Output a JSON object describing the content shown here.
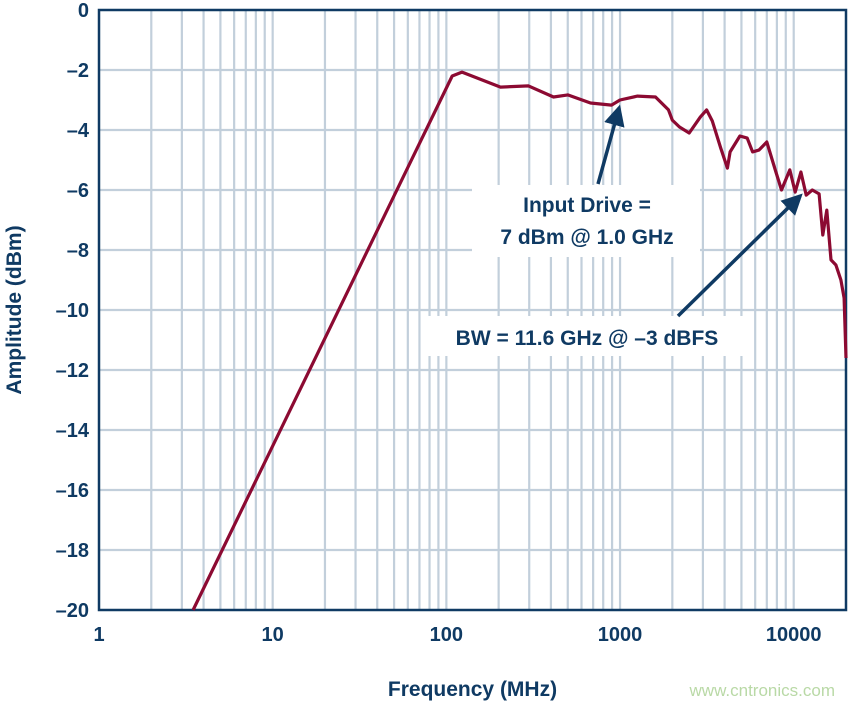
{
  "chart_data": {
    "type": "line",
    "xlabel": "Frequency (MHz)",
    "ylabel": "Amplitude (dBm)",
    "xscale": "log",
    "xlim": [
      1,
      20000
    ],
    "ylim": [
      -20,
      0
    ],
    "grid": true,
    "x_ticks": [
      "1",
      "10",
      "100",
      "1000",
      "10000"
    ],
    "y_ticks": [
      "0",
      "–2",
      "–4",
      "–6",
      "–8",
      "–10",
      "–12",
      "–14",
      "–16",
      "–18",
      "–20"
    ],
    "series": [
      {
        "color": "#8c0a32",
        "x": [
          3.48,
          108,
          123,
          205,
          297,
          414,
          500,
          676,
          893,
          1000,
          1260,
          1600,
          1900,
          2000,
          2200,
          2500,
          2900,
          3150,
          3400,
          3800,
          4150,
          4300,
          4900,
          5400,
          5800,
          6300,
          7000,
          7900,
          8500,
          9500,
          10200,
          11000,
          11800,
          12800,
          14000,
          14700,
          15500,
          16400,
          17500,
          18700,
          19500,
          20000
        ],
        "y": [
          -20,
          -2.2,
          -2.07,
          -2.57,
          -2.53,
          -2.9,
          -2.83,
          -3.1,
          -3.17,
          -3.0,
          -2.87,
          -2.9,
          -3.33,
          -3.67,
          -3.9,
          -4.1,
          -3.57,
          -3.33,
          -3.7,
          -4.6,
          -5.27,
          -4.73,
          -4.2,
          -4.27,
          -4.73,
          -4.67,
          -4.4,
          -5.4,
          -6.0,
          -5.33,
          -6.07,
          -5.4,
          -6.17,
          -6.0,
          -6.13,
          -7.5,
          -6.67,
          -8.33,
          -8.5,
          -9.0,
          -9.6,
          -11.6
        ]
      }
    ],
    "annotations": [
      {
        "lines": [
          "Input Drive =",
          "7 dBm @ 1.0 GHz"
        ],
        "target": [
          1000,
          -3.0
        ]
      },
      {
        "lines": [
          "BW = 11.6 GHz @ –3 dBFS"
        ],
        "target": [
          11800,
          -6.0
        ]
      }
    ],
    "axis_color": "#0f3a63",
    "grid_color": "#c2cfdb"
  },
  "watermark": "www.cntronics.com"
}
